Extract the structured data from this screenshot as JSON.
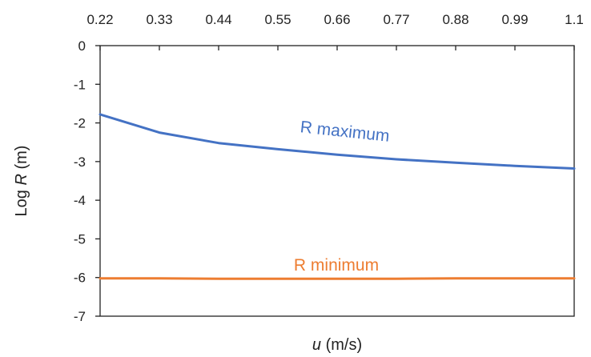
{
  "chart_data": {
    "type": "line",
    "title": "",
    "xlabel": {
      "var": "u",
      "unit": " (m/s)"
    },
    "ylabel": {
      "prefix": "Log ",
      "var": "R",
      "unit": " (m)"
    },
    "x_ticks": [
      "0.22",
      "0.33",
      "0.44",
      "0.55",
      "0.66",
      "0.77",
      "0.88",
      "0.99",
      "1.1"
    ],
    "y_ticks": [
      "0",
      "-1",
      "-2",
      "-3",
      "-4",
      "-5",
      "-6",
      "-7"
    ],
    "xlim": [
      0.22,
      1.1
    ],
    "ylim": [
      -7,
      0
    ],
    "x_axis_position": "top",
    "grid": false,
    "legend": "none",
    "series": [
      {
        "name": "R maximum",
        "color": "#4472C4",
        "x": [
          0.22,
          0.33,
          0.44,
          0.55,
          0.66,
          0.77,
          0.88,
          0.99,
          1.1
        ],
        "y": [
          -1.78,
          -2.25,
          -2.52,
          -2.68,
          -2.82,
          -2.94,
          -3.03,
          -3.11,
          -3.18
        ]
      },
      {
        "name": "R minimum",
        "color": "#ED7D31",
        "x": [
          0.22,
          0.33,
          0.44,
          0.55,
          0.66,
          0.77,
          0.88,
          0.99,
          1.1
        ],
        "y": [
          -6.02,
          -6.02,
          -6.03,
          -6.03,
          -6.03,
          -6.03,
          -6.02,
          -6.02,
          -6.02
        ]
      }
    ]
  }
}
